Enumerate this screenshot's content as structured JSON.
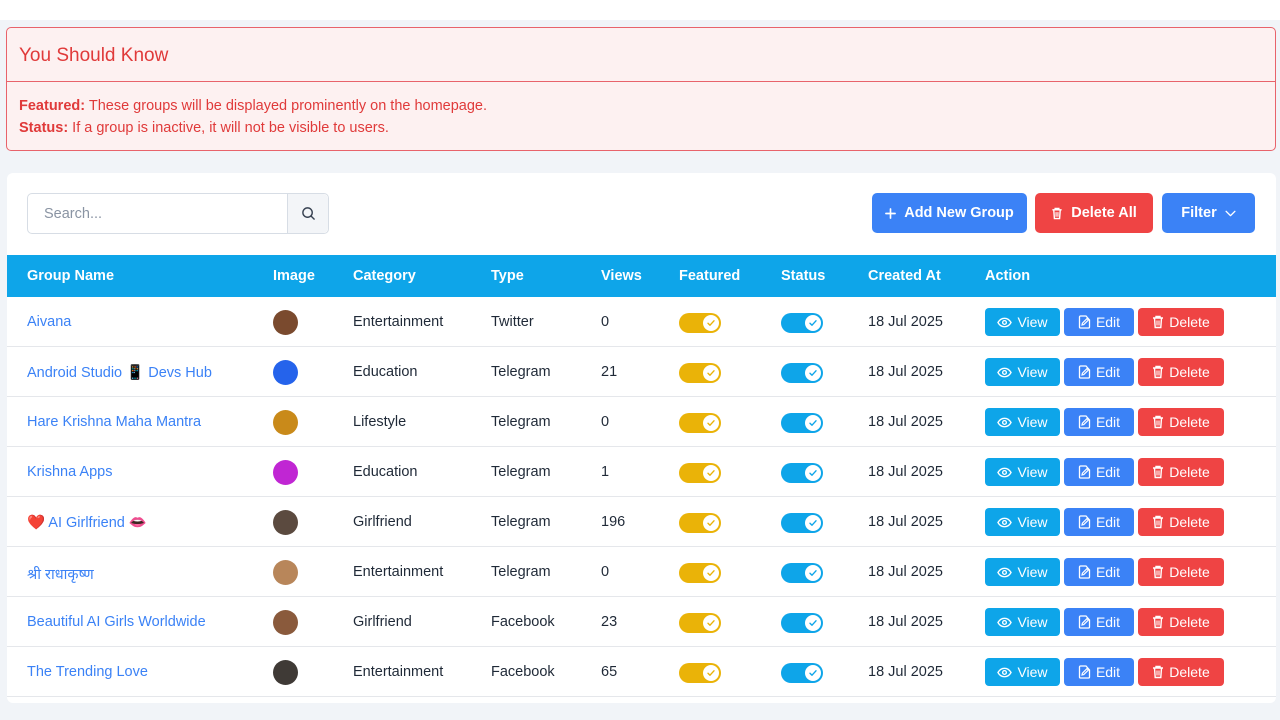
{
  "alert": {
    "title": "You Should Know",
    "featured_label": "Featured:",
    "featured_text": " These groups will be displayed prominently on the homepage.",
    "status_label": "Status:",
    "status_text": " If a group is inactive, it will not be visible to users."
  },
  "toolbar": {
    "search_placeholder": "Search...",
    "add_label": "Add New Group",
    "delete_all_label": "Delete All",
    "filter_label": "Filter"
  },
  "table": {
    "headers": [
      "Group Name",
      "Image",
      "Category",
      "Type",
      "Views",
      "Featured",
      "Status",
      "Created At",
      "Action"
    ],
    "action_labels": {
      "view": "View",
      "edit": "Edit",
      "delete": "Delete"
    },
    "rows": [
      {
        "name": "Aivana",
        "category": "Entertainment",
        "type": "Twitter",
        "views": "0",
        "featured": true,
        "status": true,
        "created": "18 Jul 2025",
        "avatar_color": "#7a4a2e"
      },
      {
        "name": "Android Studio 📱 Devs Hub",
        "category": "Education",
        "type": "Telegram",
        "views": "21",
        "featured": true,
        "status": true,
        "created": "18 Jul 2025",
        "avatar_color": "#2563eb"
      },
      {
        "name": "Hare Krishna Maha Mantra",
        "category": "Lifestyle",
        "type": "Telegram",
        "views": "0",
        "featured": true,
        "status": true,
        "created": "18 Jul 2025",
        "avatar_color": "#c98a1a"
      },
      {
        "name": "Krishna Apps",
        "category": "Education",
        "type": "Telegram",
        "views": "1",
        "featured": true,
        "status": true,
        "created": "18 Jul 2025",
        "avatar_color": "#c026d3"
      },
      {
        "name": "❤️ AI Girlfriend 👄",
        "category": "Girlfriend",
        "type": "Telegram",
        "views": "196",
        "featured": true,
        "status": true,
        "created": "18 Jul 2025",
        "avatar_color": "#5b4a3f"
      },
      {
        "name": "श्री राधाकृष्ण",
        "category": "Entertainment",
        "type": "Telegram",
        "views": "0",
        "featured": true,
        "status": true,
        "created": "18 Jul 2025",
        "avatar_color": "#b8865a"
      },
      {
        "name": "Beautiful AI Girls Worldwide",
        "category": "Girlfriend",
        "type": "Facebook",
        "views": "23",
        "featured": true,
        "status": true,
        "created": "18 Jul 2025",
        "avatar_color": "#8a5a3c"
      },
      {
        "name": "The Trending Love",
        "category": "Entertainment",
        "type": "Facebook",
        "views": "65",
        "featured": true,
        "status": true,
        "created": "18 Jul 2025",
        "avatar_color": "#3f3a36"
      }
    ]
  },
  "colors": {
    "alert_red": "#e03a3a",
    "header_blue": "#0ea5e9",
    "primary_blue": "#3b82f6",
    "danger_red": "#ef4444",
    "featured_yellow": "#eab308"
  }
}
